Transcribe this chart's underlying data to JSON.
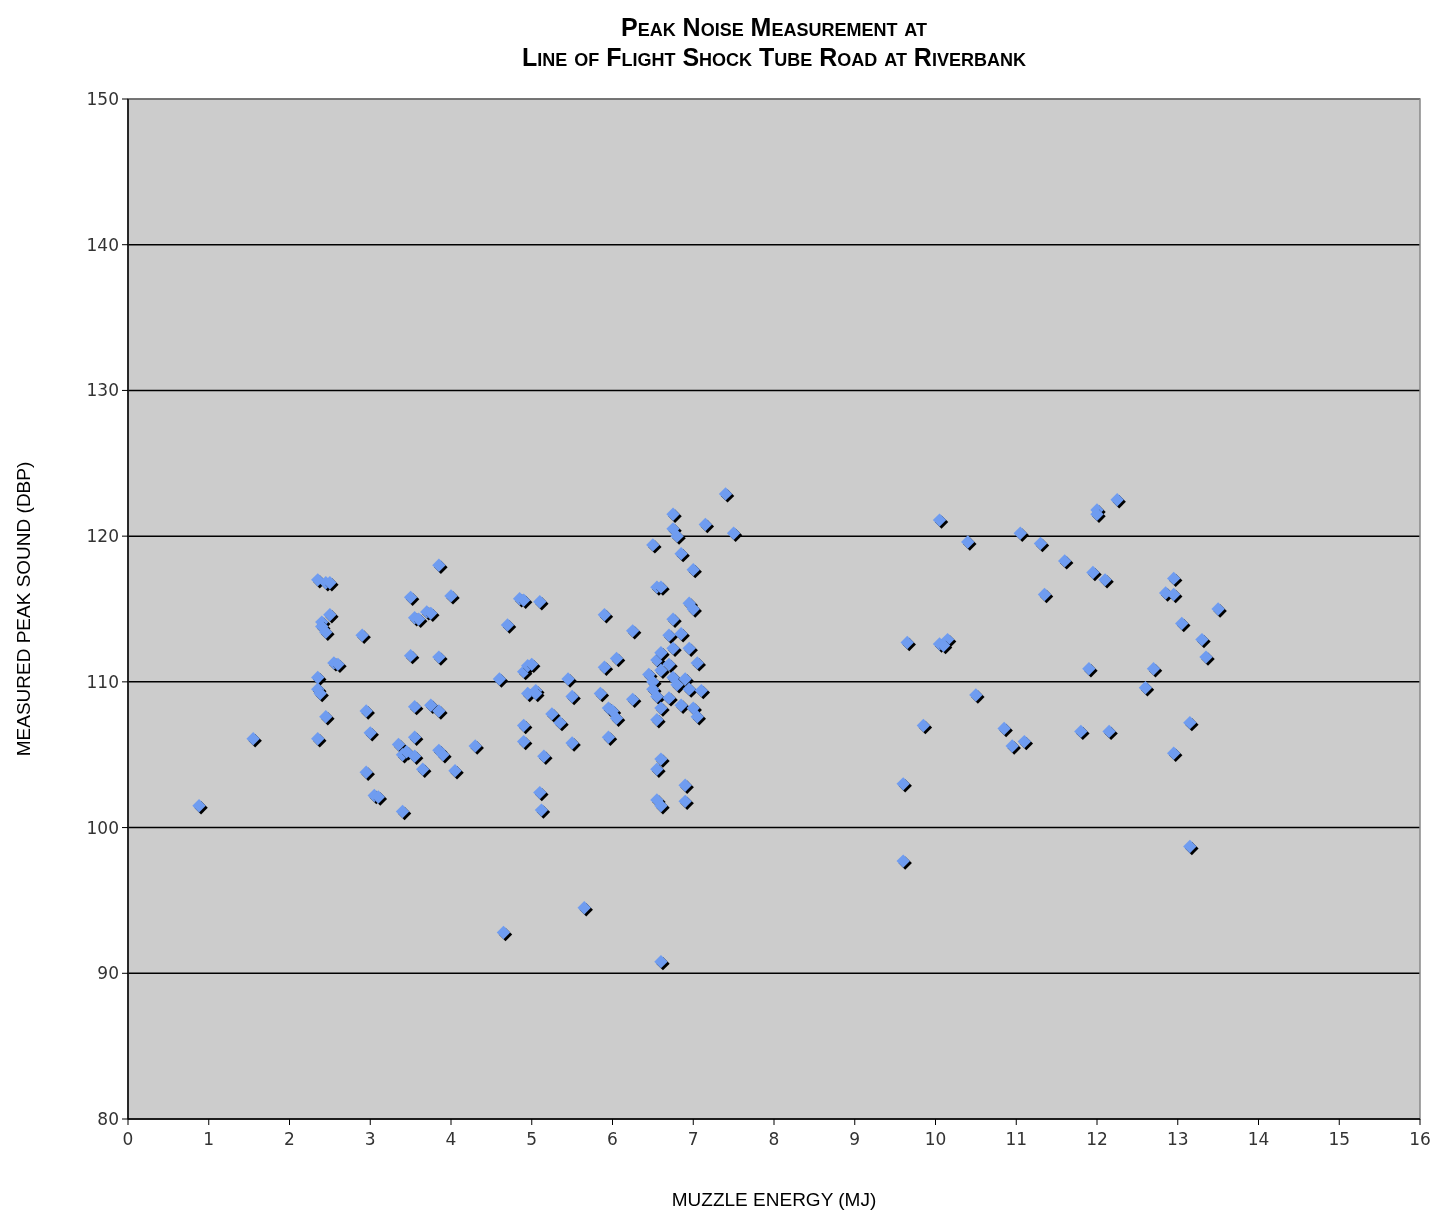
{
  "chart_data": {
    "type": "scatter",
    "title": "Peak Noise Measurement at\nLine of Flight Shock Tube Road at Riverbank",
    "xlabel": "MUZZLE ENERGY (MJ)",
    "ylabel": "MEASURED PEAK SOUND (DBP)",
    "xlim": [
      0,
      16
    ],
    "xticks": [
      0,
      1,
      2,
      3,
      4,
      5,
      6,
      7,
      8,
      9,
      10,
      11,
      12,
      13,
      14,
      15,
      16
    ],
    "ylim": [
      80,
      150
    ],
    "yticks": [
      80,
      90,
      100,
      110,
      120,
      130,
      140,
      150
    ],
    "grid": "y",
    "marker": "diamond",
    "series": [
      {
        "color": "#6f9cf0",
        "x": [
          0.88,
          1.55,
          2.35,
          2.45,
          2.5,
          2.4,
          2.4,
          2.45,
          2.5,
          2.55,
          2.6,
          2.35,
          2.35,
          2.38,
          2.45,
          2.35,
          2.9,
          2.95,
          3.0,
          2.95,
          3.05,
          3.1,
          3.35,
          3.4,
          3.45,
          3.4,
          3.55,
          3.5,
          3.55,
          3.6,
          3.7,
          3.75,
          3.5,
          3.55,
          3.55,
          3.65,
          3.75,
          3.85,
          3.85,
          3.9,
          3.85,
          3.85,
          4.0,
          4.05,
          4.3,
          4.6,
          4.7,
          4.85,
          4.9,
          4.9,
          4.95,
          5.0,
          4.9,
          4.9,
          4.95,
          5.05,
          5.05,
          5.1,
          5.1,
          5.12,
          5.15,
          4.65,
          5.65,
          5.45,
          5.5,
          5.25,
          5.35,
          5.5,
          5.85,
          5.9,
          5.9,
          5.95,
          6.0,
          6.05,
          5.95,
          6.05,
          6.25,
          6.25,
          6.45,
          6.5,
          6.55,
          6.5,
          6.6,
          6.55,
          6.6,
          6.55,
          6.6,
          6.7,
          6.75,
          6.7,
          6.75,
          6.8,
          6.7,
          6.85,
          6.9,
          6.95,
          6.75,
          6.5,
          6.55,
          6.6,
          6.75,
          6.75,
          6.8,
          6.85,
          7.0,
          6.95,
          7.0,
          7.05,
          7.0,
          7.05,
          7.1,
          6.95,
          6.85,
          6.55,
          6.6,
          6.55,
          6.6,
          6.9,
          6.9,
          6.6,
          7.15,
          7.4,
          7.5,
          9.6,
          9.6,
          9.65,
          9.85,
          10.05,
          10.05,
          10.15,
          10.1,
          10.4,
          10.5,
          10.85,
          10.95,
          11.1,
          11.05,
          11.3,
          11.35,
          11.6,
          11.8,
          11.9,
          11.95,
          12.0,
          12.0,
          12.1,
          12.15,
          12.25,
          12.6,
          12.7,
          12.85,
          12.95,
          12.95,
          13.05,
          12.95,
          13.15,
          13.3,
          13.35,
          13.15,
          13.5
        ],
        "values": [
          101.5,
          106.1,
          117,
          116.8,
          116.8,
          114.1,
          113.8,
          113.4,
          114.6,
          111.3,
          111.2,
          110.3,
          109.5,
          109.2,
          107.6,
          106.1,
          113.2,
          108,
          106.5,
          103.8,
          102.2,
          102.1,
          105.7,
          105,
          105.2,
          101.1,
          104.9,
          115.8,
          114.4,
          114.3,
          114.8,
          114.7,
          111.8,
          108.3,
          106.2,
          104,
          108.4,
          108,
          105.3,
          105,
          118,
          111.7,
          115.9,
          103.9,
          105.6,
          110.2,
          113.9,
          115.7,
          115.6,
          110.7,
          111.1,
          111.2,
          107,
          105.9,
          109.2,
          109.4,
          109.2,
          115.5,
          102.4,
          101.2,
          104.9,
          92.8,
          94.5,
          110.2,
          109,
          107.8,
          107.2,
          105.8,
          109.2,
          114.6,
          111,
          108.2,
          108,
          107.5,
          106.2,
          111.6,
          113.5,
          108.8,
          110.5,
          110,
          111.5,
          109.5,
          112,
          109,
          108.2,
          107.4,
          110.8,
          113.2,
          112.3,
          111.2,
          110.3,
          109.8,
          108.9,
          108.4,
          110.2,
          109.5,
          114.3,
          119.4,
          116.5,
          116.5,
          121.5,
          120.5,
          120,
          118.8,
          117.7,
          115.4,
          115,
          111.3,
          108.2,
          107.6,
          109.4,
          112.3,
          113.3,
          104,
          104.7,
          101.9,
          101.5,
          102.9,
          101.8,
          90.8,
          120.8,
          122.9,
          120.2,
          97.7,
          103,
          112.7,
          107,
          121.1,
          112.6,
          112.9,
          112.5,
          119.6,
          109.1,
          106.8,
          105.6,
          105.9,
          120.2,
          119.5,
          116,
          118.3,
          106.6,
          110.9,
          117.5,
          121.8,
          121.5,
          117,
          106.6,
          122.5,
          109.6,
          110.9,
          116.1,
          117.1,
          116,
          114,
          105.1,
          107.2,
          112.9,
          111.7,
          98.7,
          115
        ]
      }
    ]
  }
}
